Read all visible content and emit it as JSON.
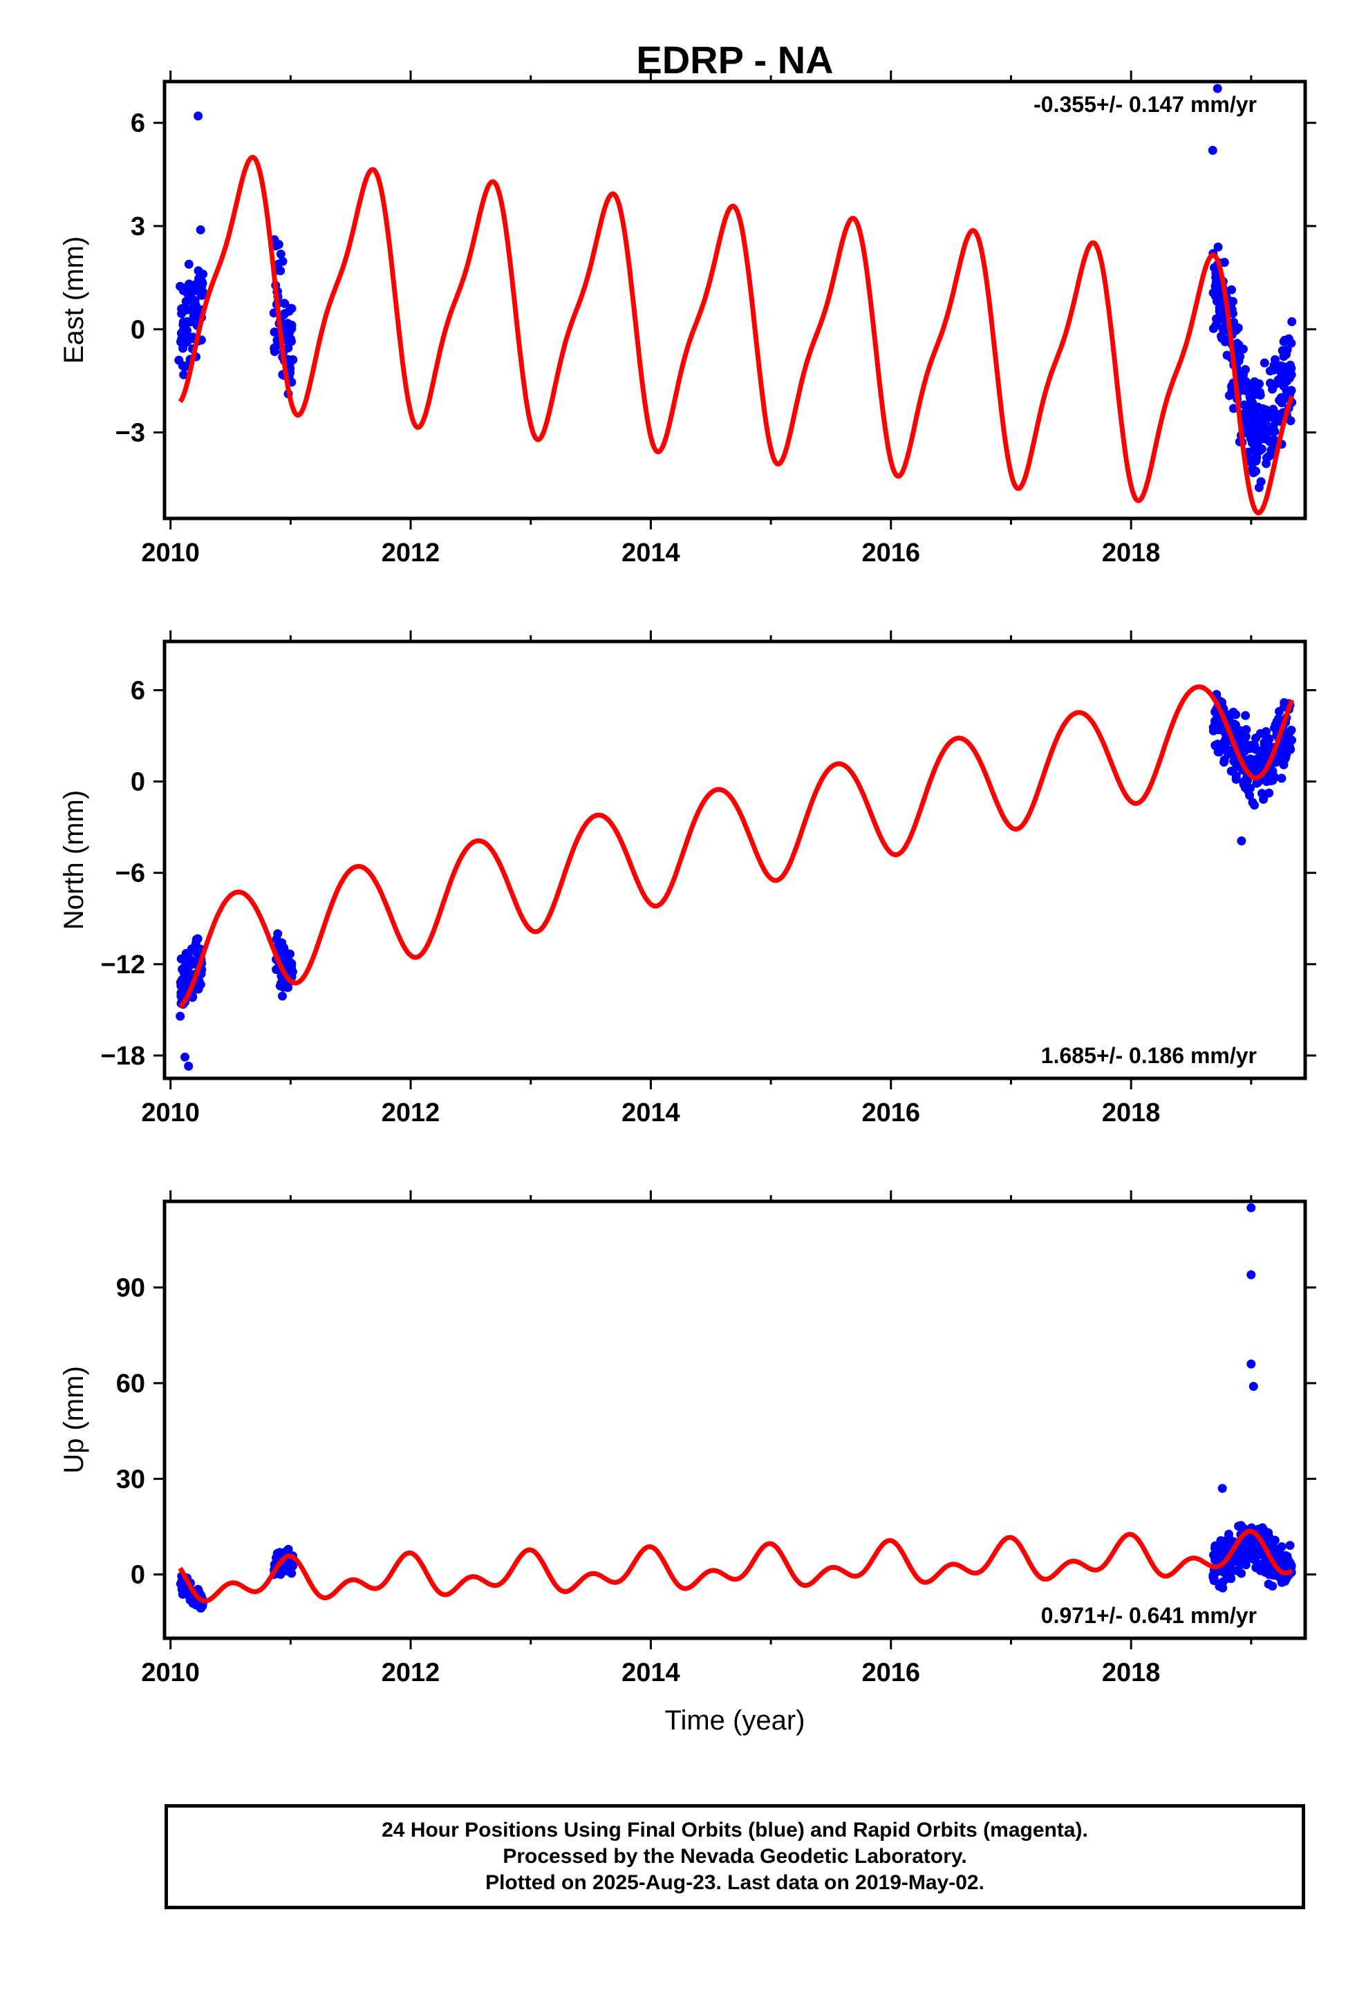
{
  "chart_data": [
    {
      "type": "scatter",
      "title": "EDRP - NA",
      "ylabel": "East (mm)",
      "xlabel": "",
      "xlim": [
        2009.95,
        2019.45
      ],
      "ylim": [
        -5.5,
        7.2
      ],
      "xticks": [
        "2010",
        "2012",
        "2014",
        "2016",
        "2018"
      ],
      "xtick_values": [
        2010,
        2012,
        2014,
        2016,
        2018
      ],
      "yticks": [
        "6",
        "3",
        "0",
        "−3"
      ],
      "ytick_values": [
        6,
        3,
        0,
        -3
      ],
      "rate_label": "-0.355+/- 0.147 mm/yr",
      "rate_position": "top-right",
      "model": {
        "offset": 1.6,
        "rate": -0.355,
        "annual_amp": 3.3,
        "annual_phase_year": 0.62,
        "semi_amp": 0.9,
        "semi_phase_year": 0.25
      },
      "segments": [
        {
          "start": 2010.08,
          "end": 2010.27,
          "base": 2.2,
          "noise": 1.4
        },
        {
          "start": 2010.86,
          "end": 2011.02,
          "base": 1.0,
          "noise": 1.6
        },
        {
          "start": 2018.68,
          "end": 2019.34,
          "base": 0.0,
          "noise": 1.3
        }
      ],
      "outliers": [
        {
          "x": 2018.72,
          "y": 7.0
        },
        {
          "x": 2018.68,
          "y": 5.2
        },
        {
          "x": 2010.07,
          "y": -0.9
        },
        {
          "x": 2010.23,
          "y": 6.2
        }
      ]
    },
    {
      "type": "scatter",
      "title": "",
      "ylabel": "North (mm)",
      "xlabel": "",
      "xlim": [
        2009.95,
        2019.45
      ],
      "ylim": [
        -19.5,
        9.2
      ],
      "xticks": [
        "2010",
        "2012",
        "2014",
        "2016",
        "2018"
      ],
      "xtick_values": [
        2010,
        2012,
        2014,
        2016,
        2018
      ],
      "yticks": [
        "6",
        "0",
        "−6",
        "−12",
        "−18"
      ],
      "ytick_values": [
        6,
        0,
        -6,
        -12,
        -18
      ],
      "rate_label": "1.685+/- 0.186 mm/yr",
      "rate_position": "bottom-right",
      "model": {
        "offset": -11.4,
        "rate": 1.685,
        "annual_amp": 3.4,
        "annual_phase_year": 0.55,
        "semi_amp": 0.2,
        "semi_phase_year": 0.3
      },
      "segments": [
        {
          "start": 2010.08,
          "end": 2010.26,
          "base": -12.0,
          "noise": 1.8
        },
        {
          "start": 2010.88,
          "end": 2011.02,
          "base": -12.0,
          "noise": 1.5
        },
        {
          "start": 2018.68,
          "end": 2019.34,
          "base": 2.0,
          "noise": 2.0
        }
      ],
      "outliers": [
        {
          "x": 2010.12,
          "y": -18.1
        },
        {
          "x": 2010.15,
          "y": -18.7
        },
        {
          "x": 2018.92,
          "y": -3.9
        }
      ]
    },
    {
      "type": "scatter",
      "title": "",
      "ylabel": "Up (mm)",
      "xlabel": "Time (year)",
      "xlim": [
        2009.95,
        2019.45
      ],
      "ylim": [
        -20,
        117
      ],
      "xticks": [
        "2010",
        "2012",
        "2014",
        "2016",
        "2018"
      ],
      "xtick_values": [
        2010,
        2012,
        2014,
        2016,
        2018
      ],
      "yticks": [
        "90",
        "60",
        "30",
        "0"
      ],
      "ytick_values": [
        90,
        60,
        30,
        0
      ],
      "rate_label": "0.971+/- 0.641 mm/yr",
      "rate_position": "bottom-right",
      "model": {
        "offset": -3.0,
        "rate": 0.971,
        "annual_amp": 4.2,
        "annual_phase_year": 0.95,
        "semi_amp": 3.8,
        "semi_phase_year": 0.0
      },
      "segments": [
        {
          "start": 2010.08,
          "end": 2010.27,
          "base": -9.0,
          "noise": 3.0
        },
        {
          "start": 2010.86,
          "end": 2011.02,
          "base": 3.0,
          "noise": 3.0
        },
        {
          "start": 2018.68,
          "end": 2019.34,
          "base": 5.0,
          "noise": 6.0
        }
      ],
      "outliers": [
        {
          "x": 2019.0,
          "y": 115
        },
        {
          "x": 2019.0,
          "y": 94
        },
        {
          "x": 2019.0,
          "y": 66
        },
        {
          "x": 2019.02,
          "y": 59
        },
        {
          "x": 2018.76,
          "y": 27
        }
      ]
    }
  ],
  "colors": {
    "final_orbits": "#0000ff",
    "model_fit": "#ff0000",
    "frame": "#000000"
  },
  "footer": {
    "line1": "24 Hour Positions Using Final Orbits (blue) and Rapid Orbits (magenta).",
    "line2": "Processed by the Nevada Geodetic Laboratory.",
    "line3": "Plotted on 2025-Aug-23. Last data on 2019-May-02."
  }
}
